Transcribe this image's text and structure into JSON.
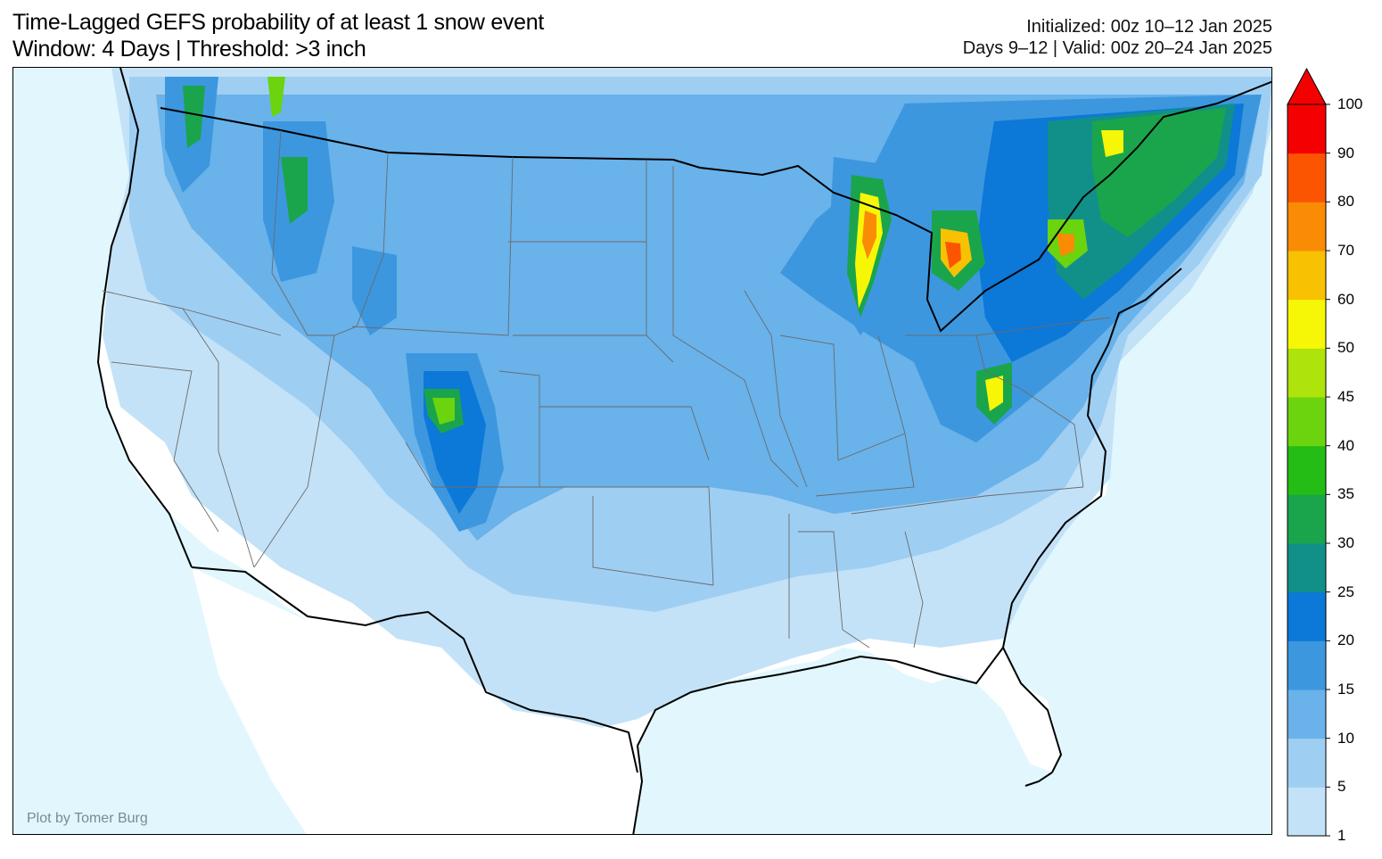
{
  "header": {
    "title_line1": "Time-Lagged GEFS probability of at least 1 snow event",
    "title_line2": "Window: 4 Days | Threshold: >3 inch",
    "init_line": "Initialized: 00z 10–12 Jan 2025",
    "valid_line": "Days 9–12 | Valid: 00z 20–24 Jan 2025"
  },
  "map": {
    "credit": "Plot by Tomer Burg",
    "ocean_color": "#e1f7fd",
    "land_color": "#ffffff"
  },
  "colorbar": {
    "levels": [
      "1",
      "5",
      "10",
      "15",
      "20",
      "25",
      "30",
      "35",
      "40",
      "45",
      "50",
      "60",
      "70",
      "80",
      "90",
      "100"
    ],
    "colors": [
      "#c3e2f7",
      "#9fcef3",
      "#69b2ea",
      "#3c97df",
      "#0c78d8",
      "#11908a",
      "#1aa54c",
      "#23bd15",
      "#6bd40f",
      "#aee30b",
      "#f6f707",
      "#f8c101",
      "#fa8b05",
      "#fb5502",
      "#f40000"
    ],
    "extend_color": "#f40000"
  }
}
